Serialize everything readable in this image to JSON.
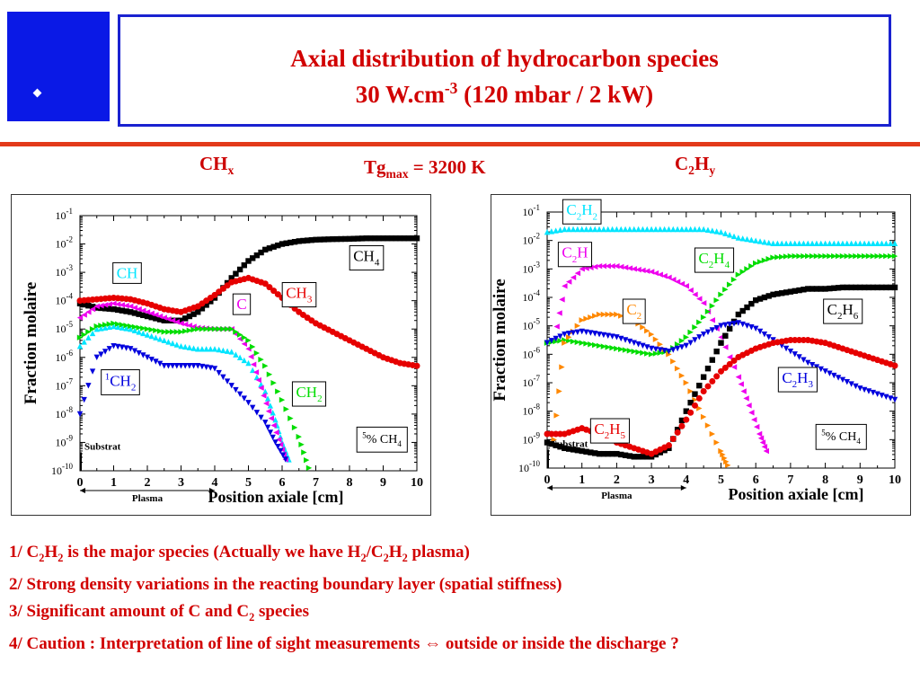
{
  "title": {
    "line1": "Axial distribution of hydrocarbon species",
    "line2_pre": "30 W.cm",
    "line2_sup": "-3",
    "line2_post": " (120 mbar / 2 kW)"
  },
  "headers": {
    "left": {
      "main": "CH",
      "sub": "x"
    },
    "center": {
      "main": "Tg",
      "sub": "max",
      "rest": " = 3200 K"
    },
    "right": {
      "p1": "C",
      "s1": "2",
      "p2": "H",
      "s2": "y"
    }
  },
  "notes": [
    {
      "num": "1/",
      "segments": [
        [
          "  C",
          ""
        ],
        [
          "2",
          "sub"
        ],
        [
          "H",
          ""
        ],
        [
          "2",
          "sub"
        ],
        [
          " is the major species (Actually we have H",
          ""
        ],
        [
          "2",
          "sub"
        ],
        [
          "/C",
          ""
        ],
        [
          "2",
          "sub"
        ],
        [
          "H",
          ""
        ],
        [
          "2",
          "sub"
        ],
        [
          " plasma)",
          ""
        ]
      ]
    },
    {
      "num": "2/",
      "segments": [
        [
          " Strong density variations in the reacting boundary layer (spatial stiffness)",
          ""
        ]
      ]
    },
    {
      "num": "3/",
      "segments": [
        [
          " Significant amount of C and C",
          ""
        ],
        [
          "2",
          "sub"
        ],
        [
          " species",
          ""
        ]
      ]
    },
    {
      "num": "4/",
      "segments": [
        [
          " Caution : Interpretation of line of sight measurements ⇔ outside or inside the discharge ?",
          ""
        ]
      ]
    }
  ],
  "chart_data": [
    {
      "type": "scatter",
      "xlabel": "Position axiale [cm]",
      "ylabel": "Fraction molaire",
      "xlim": [
        0,
        10
      ],
      "ylim": [
        -10,
        -1
      ],
      "log_y": true,
      "x_ticks": [
        "0",
        "1",
        "2",
        "3",
        "4",
        "5",
        "6",
        "7",
        "8",
        "9",
        "10"
      ],
      "y_ticks": [
        "-1",
        "-2",
        "-3",
        "-4",
        "-5",
        "-6",
        "-7",
        "-8",
        "-9",
        "-10"
      ],
      "annotation": "5% CH4",
      "substrat_label": "Substrat",
      "plasma_label": "Plasma",
      "plasma_range": [
        0,
        4
      ],
      "series": [
        {
          "name": "CH4",
          "color": "#000000",
          "marker": "square",
          "x": [
            0,
            0.5,
            1,
            1.5,
            2,
            2.5,
            3,
            3.5,
            4,
            4.5,
            5,
            5.5,
            6,
            6.5,
            7,
            7.5,
            8,
            8.5,
            9,
            9.5,
            10
          ],
          "y": [
            -4.1,
            -4.25,
            -4.3,
            -4.4,
            -4.55,
            -4.7,
            -4.7,
            -4.4,
            -3.9,
            -3.2,
            -2.6,
            -2.2,
            -2.0,
            -1.9,
            -1.85,
            -1.83,
            -1.82,
            -1.8,
            -1.8,
            -1.8,
            -1.8
          ]
        },
        {
          "name": "CH3",
          "color": "#e60000",
          "marker": "circle",
          "x": [
            0,
            0.5,
            1,
            1.5,
            2,
            2.5,
            3,
            3.5,
            4,
            4.5,
            5,
            5.5,
            6,
            6.5,
            7,
            7.5,
            8,
            8.5,
            9,
            9.5,
            10
          ],
          "y": [
            -4.0,
            -3.95,
            -3.9,
            -3.95,
            -4.1,
            -4.3,
            -4.4,
            -4.2,
            -3.8,
            -3.35,
            -3.2,
            -3.4,
            -3.9,
            -4.4,
            -4.8,
            -5.1,
            -5.4,
            -5.7,
            -6.0,
            -6.2,
            -6.3
          ]
        },
        {
          "name": "CH",
          "color": "#00e5ff",
          "marker": "triangle-up",
          "x": [
            0,
            0.5,
            1,
            1.5,
            2,
            2.5,
            3,
            3.5,
            4,
            4.5,
            5,
            5.5,
            5.8,
            6,
            6.2
          ],
          "y": [
            -5.6,
            -5.0,
            -4.9,
            -5.0,
            -5.2,
            -5.4,
            -5.6,
            -5.7,
            -5.7,
            -5.8,
            -6.2,
            -7.2,
            -8.2,
            -9.0,
            -9.6
          ]
        },
        {
          "name": "C",
          "color": "#ee00ee",
          "marker": "triangle-left",
          "x": [
            0,
            0.5,
            1,
            1.5,
            2,
            2.5,
            3,
            3.5,
            4,
            4.5,
            5,
            5.3,
            5.6,
            5.9,
            6.1
          ],
          "y": [
            -4.6,
            -4.2,
            -4.1,
            -4.2,
            -4.4,
            -4.6,
            -4.8,
            -4.95,
            -5.0,
            -5.0,
            -5.7,
            -6.8,
            -7.9,
            -8.9,
            -9.6
          ]
        },
        {
          "name": "CH2",
          "color": "#00dd00",
          "marker": "triangle-right",
          "x": [
            0,
            0.5,
            1,
            1.5,
            2,
            2.5,
            3,
            3.5,
            4,
            4.5,
            5,
            5.5,
            6,
            6.5,
            6.8
          ],
          "y": [
            -5.3,
            -4.9,
            -4.8,
            -4.9,
            -5.0,
            -5.1,
            -5.1,
            -5.0,
            -5.0,
            -5.0,
            -5.4,
            -6.3,
            -7.5,
            -8.8,
            -9.9
          ]
        },
        {
          "name": "1CH2",
          "color": "#0000dd",
          "marker": "triangle-down",
          "x": [
            0,
            0.5,
            1,
            1.5,
            2,
            2.5,
            3,
            3.5,
            4,
            4.5,
            5,
            5.5,
            5.8,
            6.1
          ],
          "y": [
            -8.0,
            -6.0,
            -5.6,
            -5.7,
            -6.0,
            -6.3,
            -6.3,
            -6.3,
            -6.4,
            -7.0,
            -7.6,
            -8.3,
            -9.0,
            -9.6
          ]
        }
      ],
      "labels": [
        {
          "text": "CH4",
          "color": "#000000",
          "at": [
            8.5,
            -2.6
          ]
        },
        {
          "text": "CH",
          "color": "#00e5ff",
          "at": [
            1.4,
            -3.2
          ]
        },
        {
          "text": "CH3",
          "color": "#e60000",
          "at": [
            6.5,
            -3.9
          ]
        },
        {
          "text": "C",
          "color": "#ee00ee",
          "at": [
            4.8,
            -4.3
          ]
        },
        {
          "text": "1CH2",
          "color": "#0000dd",
          "at": [
            1.2,
            -7.0
          ]
        },
        {
          "text": "CH2",
          "color": "#00dd00",
          "at": [
            6.8,
            -7.4
          ]
        }
      ]
    },
    {
      "type": "scatter",
      "xlabel": "Position axiale [cm]",
      "ylabel": "Fraction molaire",
      "xlim": [
        0,
        10
      ],
      "ylim": [
        -10,
        -1
      ],
      "log_y": true,
      "x_ticks": [
        "0",
        "1",
        "2",
        "3",
        "4",
        "5",
        "6",
        "7",
        "8",
        "9",
        "10"
      ],
      "y_ticks": [
        "-1",
        "-2",
        "-3",
        "-4",
        "-5",
        "-6",
        "-7",
        "-8",
        "-9",
        "-10"
      ],
      "annotation": "5% CH4",
      "substrat_label": "Substrat",
      "plasma_label": "Plasma",
      "plasma_range": [
        0,
        4
      ],
      "series": [
        {
          "name": "C2H2",
          "color": "#00e5ff",
          "marker": "triangle-up",
          "x": [
            0,
            0.5,
            1,
            1.5,
            2,
            2.5,
            3,
            3.5,
            4,
            4.5,
            5,
            5.5,
            6,
            6.5,
            7,
            7.5,
            8,
            8.5,
            9,
            9.5,
            10
          ],
          "y": [
            -1.7,
            -1.6,
            -1.6,
            -1.6,
            -1.6,
            -1.6,
            -1.6,
            -1.6,
            -1.6,
            -1.6,
            -1.7,
            -1.9,
            -2.0,
            -2.1,
            -2.1,
            -2.1,
            -2.1,
            -2.1,
            -2.1,
            -2.1,
            -2.1
          ]
        },
        {
          "name": "C2H",
          "color": "#ee00ee",
          "marker": "triangle-left",
          "x": [
            0.2,
            0.5,
            1,
            1.5,
            2,
            2.5,
            3,
            3.5,
            4,
            4.5,
            5,
            5.5,
            5.8,
            6.1,
            6.3
          ],
          "y": [
            -5.5,
            -3.6,
            -3.0,
            -2.9,
            -2.9,
            -3.0,
            -3.1,
            -3.3,
            -3.6,
            -4.2,
            -5.4,
            -6.8,
            -7.8,
            -8.8,
            -9.4
          ]
        },
        {
          "name": "C2H4",
          "color": "#00dd00",
          "marker": "triangle-right",
          "x": [
            0,
            0.5,
            1,
            1.5,
            2,
            2.5,
            3,
            3.5,
            4,
            4.5,
            5,
            5.5,
            6,
            6.5,
            7,
            7.5,
            8,
            8.5,
            9,
            9.5,
            10
          ],
          "y": [
            -5.6,
            -5.5,
            -5.6,
            -5.7,
            -5.8,
            -5.9,
            -6.0,
            -5.9,
            -5.4,
            -4.7,
            -3.9,
            -3.2,
            -2.8,
            -2.6,
            -2.55,
            -2.55,
            -2.55,
            -2.55,
            -2.55,
            -2.55,
            -2.55
          ]
        },
        {
          "name": "C2",
          "color": "#ff8800",
          "marker": "triangle-right",
          "x": [
            0.2,
            0.5,
            1,
            1.5,
            2,
            2.5,
            3,
            3.5,
            4,
            4.5,
            5,
            5.2
          ],
          "y": [
            -9.0,
            -5.6,
            -4.8,
            -4.6,
            -4.6,
            -4.8,
            -5.3,
            -6.0,
            -7.0,
            -8.2,
            -9.4,
            -9.9
          ]
        },
        {
          "name": "C2H6",
          "color": "#000000",
          "marker": "square",
          "x": [
            0,
            0.5,
            1,
            1.5,
            2,
            2.5,
            3,
            3.5,
            4,
            4.5,
            5,
            5.5,
            6,
            6.5,
            7,
            7.5,
            8,
            8.5,
            9,
            9.5,
            10
          ],
          "y": [
            -9.1,
            -9.3,
            -9.4,
            -9.5,
            -9.5,
            -9.6,
            -9.6,
            -9.3,
            -8.0,
            -6.8,
            -5.6,
            -4.6,
            -4.1,
            -3.9,
            -3.8,
            -3.7,
            -3.7,
            -3.65,
            -3.65,
            -3.65,
            -3.65
          ]
        },
        {
          "name": "C2H3",
          "color": "#0000dd",
          "marker": "triangle-down",
          "x": [
            0,
            0.5,
            1,
            1.5,
            2,
            2.5,
            3,
            3.5,
            4,
            4.5,
            5,
            5.5,
            6,
            6.5,
            7,
            7.5,
            8,
            8.5,
            9,
            9.5,
            10
          ],
          "y": [
            -5.6,
            -5.3,
            -5.2,
            -5.3,
            -5.4,
            -5.6,
            -5.8,
            -5.9,
            -5.7,
            -5.3,
            -5.0,
            -4.9,
            -5.1,
            -5.5,
            -5.9,
            -6.3,
            -6.6,
            -6.9,
            -7.2,
            -7.4,
            -7.6
          ]
        },
        {
          "name": "C2H5",
          "color": "#e60000",
          "marker": "circle",
          "x": [
            0,
            0.5,
            1,
            1.5,
            2,
            2.5,
            3,
            3.5,
            4,
            4.5,
            5,
            5.5,
            6,
            6.5,
            7,
            7.5,
            8,
            8.5,
            9,
            9.5,
            10
          ],
          "y": [
            -8.8,
            -8.8,
            -8.6,
            -8.8,
            -9.1,
            -9.3,
            -9.5,
            -9.2,
            -8.3,
            -7.3,
            -6.6,
            -6.1,
            -5.8,
            -5.6,
            -5.5,
            -5.5,
            -5.6,
            -5.8,
            -6.0,
            -6.2,
            -6.4
          ]
        }
      ],
      "labels": [
        {
          "text": "C2H2",
          "color": "#00e5ff",
          "at": [
            1.0,
            -1.1
          ]
        },
        {
          "text": "C2H",
          "color": "#ee00ee",
          "at": [
            0.8,
            -2.6
          ]
        },
        {
          "text": "C2H4",
          "color": "#00dd00",
          "at": [
            4.8,
            -2.8
          ]
        },
        {
          "text": "C2",
          "color": "#ff8800",
          "at": [
            2.5,
            -4.6
          ]
        },
        {
          "text": "C2H6",
          "color": "#000000",
          "at": [
            8.5,
            -4.6
          ]
        },
        {
          "text": "C2H3",
          "color": "#0000dd",
          "at": [
            7.2,
            -7.0
          ]
        },
        {
          "text": "C2H5",
          "color": "#e60000",
          "at": [
            1.8,
            -8.8
          ]
        }
      ]
    }
  ]
}
